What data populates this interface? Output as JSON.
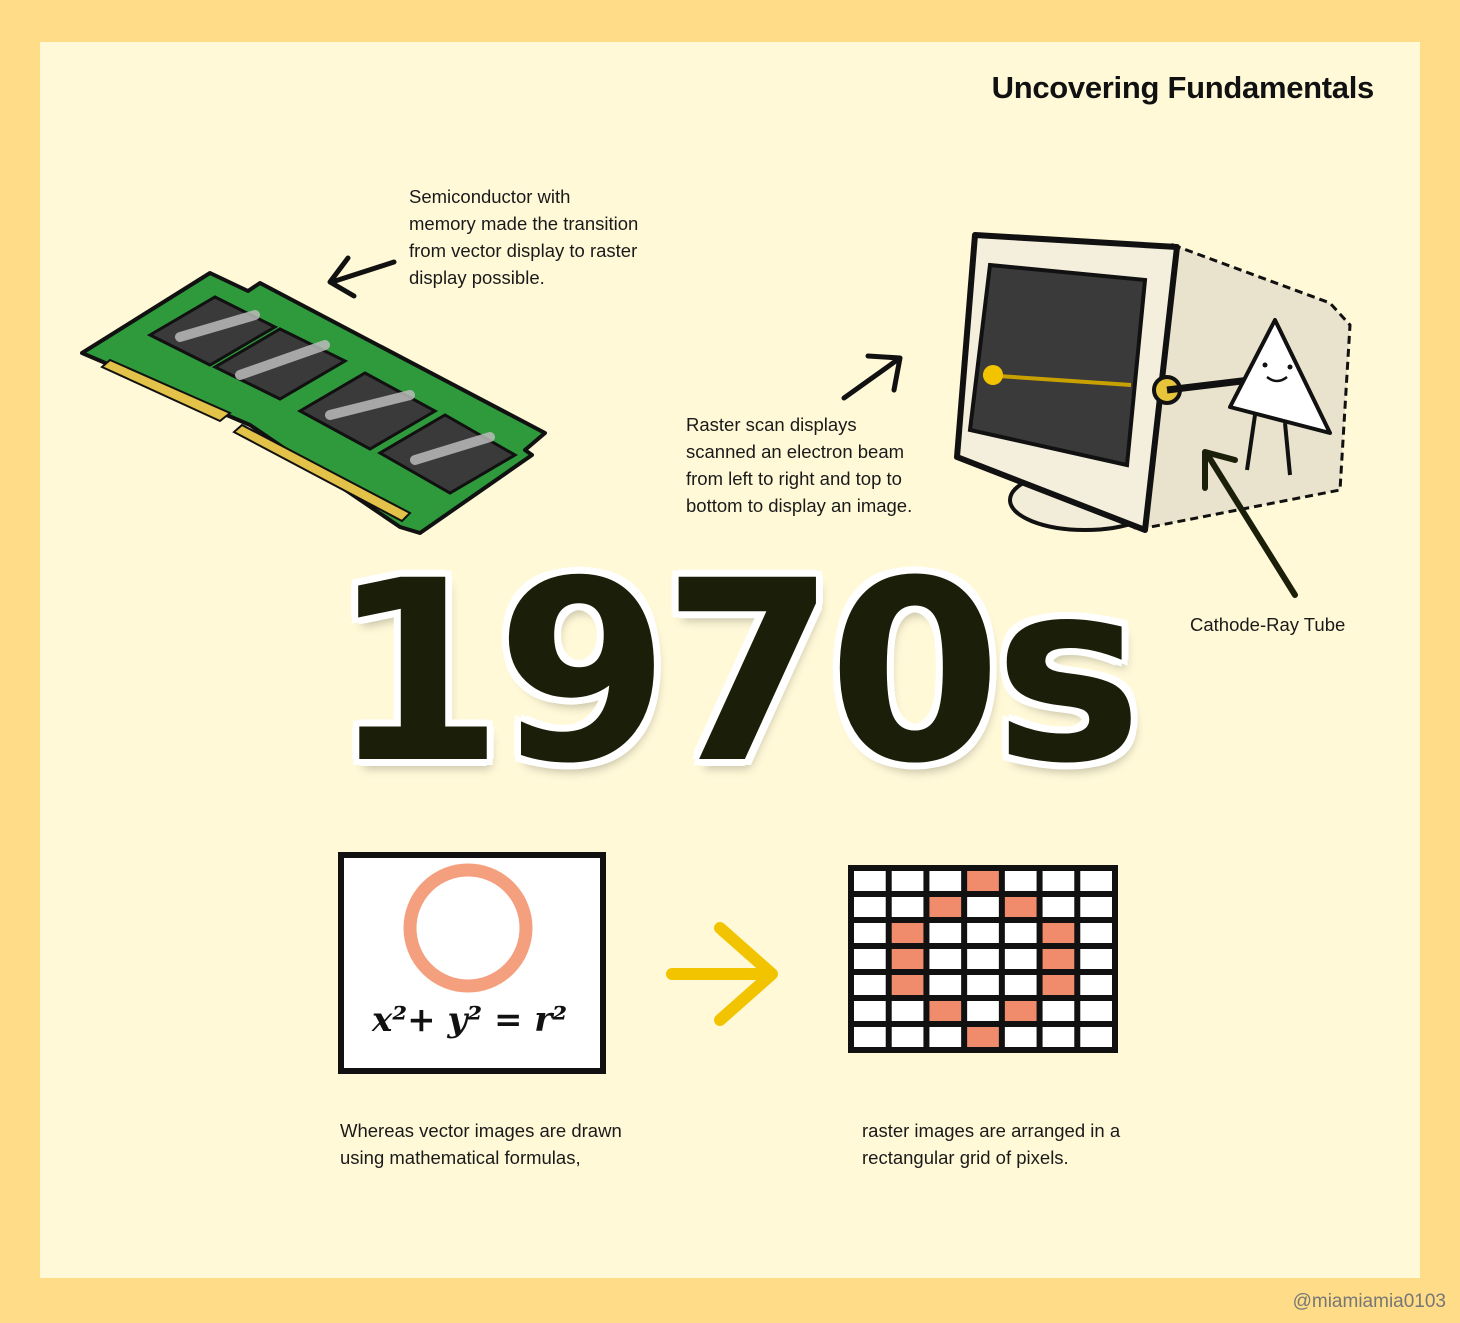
{
  "header": {
    "series_title": "Uncovering Fundamentals"
  },
  "year": "1970s",
  "notes": {
    "memory_note": [
      "Semiconductor with",
      "memory made the transition",
      "from vector display to raster",
      "display possible."
    ],
    "raster_scan_note": [
      "Raster scan displays",
      "scanned an electron beam",
      "from left to right and top to",
      "bottom to display an image."
    ],
    "crt_label": "Cathode-Ray Tube",
    "vector_note": [
      "Whereas vector images are drawn",
      "using mathematical formulas,"
    ],
    "raster_note": [
      "raster images are arranged in a",
      "rectangular grid of pixels."
    ]
  },
  "vector_panel": {
    "formula": "x²+ y² = r²",
    "circle_color": "#F4A07E"
  },
  "pixel_grid": {
    "rows": 7,
    "cols": 7,
    "fill_color": "#F08C6C",
    "filled": [
      [
        0,
        3
      ],
      [
        1,
        2
      ],
      [
        1,
        4
      ],
      [
        2,
        1
      ],
      [
        2,
        5
      ],
      [
        3,
        1
      ],
      [
        3,
        5
      ],
      [
        4,
        1
      ],
      [
        4,
        5
      ],
      [
        5,
        2
      ],
      [
        5,
        4
      ],
      [
        6,
        3
      ]
    ]
  },
  "colors": {
    "background": "#FFDC88",
    "card": "#FFF9D8",
    "accent_arrow": "#F2C400",
    "pcb_green": "#2F9A3C"
  },
  "footer": {
    "handle": "@miamiamia0103"
  }
}
